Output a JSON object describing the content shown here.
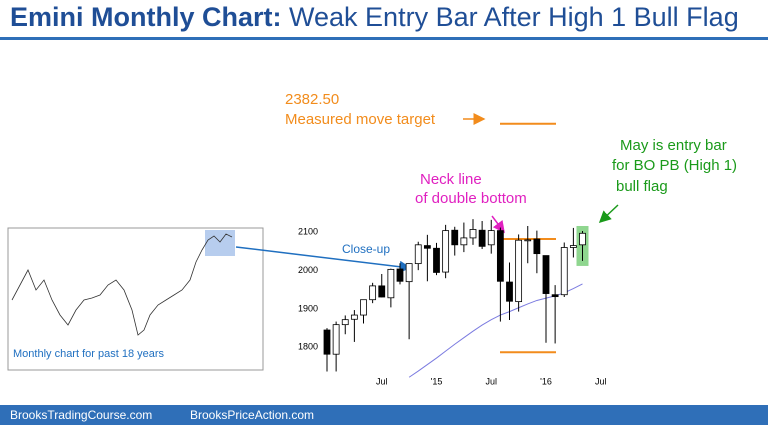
{
  "header": {
    "title_bold": "Emini Monthly Chart:",
    "title_rest": "Weak Entry Bar After High 1 Bull Flag"
  },
  "inset": {
    "caption": "Monthly chart for past 18 years",
    "arrow_label": "Close-up"
  },
  "annotations": {
    "target_label": "Measured move target",
    "neck_1": "Neck line",
    "neck_2": "of double bottom",
    "entry_1": "May is entry bar",
    "entry_2": "for BO PB (High 1)",
    "entry_3": "bull flag"
  },
  "footer": {
    "left": "BrooksTradingCourse.com",
    "right": "BrooksPriceAction.com"
  },
  "chart_data": {
    "type": "candlestick",
    "categories": [
      null,
      null,
      null,
      null,
      null,
      null,
      "Jul",
      null,
      null,
      null,
      null,
      null,
      "'15",
      null,
      null,
      null,
      null,
      null,
      "Jul",
      null,
      null,
      null,
      null,
      null,
      "'16",
      null,
      null,
      null,
      null,
      null,
      "Jul"
    ],
    "open": [
      1845,
      1782,
      1859,
      1873,
      1884,
      1924,
      1960,
      1929,
      2004,
      1971,
      2018,
      2065,
      2058,
      1996,
      2105,
      2067,
      2085,
      2105,
      2067,
      2104,
      1970,
      1919,
      2080,
      2082,
      2039,
      1937,
      1937,
      2060,
      2067,
      null,
      null
    ],
    "high": [
      1850,
      1867,
      1883,
      1897,
      1924,
      1968,
      1991,
      2005,
      2019,
      2018,
      2075,
      2093,
      2072,
      2119,
      2114,
      2125,
      2134,
      2129,
      2132,
      2112,
      2021,
      2094,
      2116,
      2104,
      2039,
      1962,
      2073,
      2111,
      2103,
      null,
      null
    ],
    "low": [
      1737,
      1737,
      1834,
      1814,
      1862,
      1915,
      1930,
      1904,
      1964,
      1821,
      2001,
      1972,
      1988,
      1980,
      2039,
      2048,
      2067,
      2056,
      2044,
      1867,
      1871,
      1893,
      2019,
      1993,
      1812,
      1810,
      1931,
      2034,
      2025,
      null,
      null
    ],
    "close": [
      1782,
      1859,
      1872,
      1884,
      1924,
      1960,
      1931,
      2003,
      1972,
      2018,
      2067,
      2058,
      1995,
      2104,
      2067,
      2085,
      2107,
      2063,
      2104,
      1972,
      1920,
      2079,
      2080,
      2044,
      1940,
      1932,
      2060,
      2065,
      2097,
      null,
      null
    ],
    "candle_up_color": "#ffffff",
    "candle_down_color": "#000000",
    "ma": [
      null,
      null,
      null,
      null,
      null,
      null,
      null,
      null,
      null,
      1722,
      1738,
      1755,
      1772,
      1790,
      1808,
      1825,
      1842,
      1858,
      1872,
      1884,
      1893,
      1903,
      1913,
      1922,
      1928,
      1934,
      1942,
      1953,
      1965,
      null,
      null
    ],
    "ma_color": "#7b7be0",
    "target": {
      "value": 2382.5,
      "label": "2382.50"
    },
    "neck": 2082,
    "bottom": 1787,
    "level_color": "#f28c1c",
    "ylim": [
      1720,
      2400
    ],
    "yticks": [
      1800,
      1900,
      2000,
      2100
    ]
  }
}
